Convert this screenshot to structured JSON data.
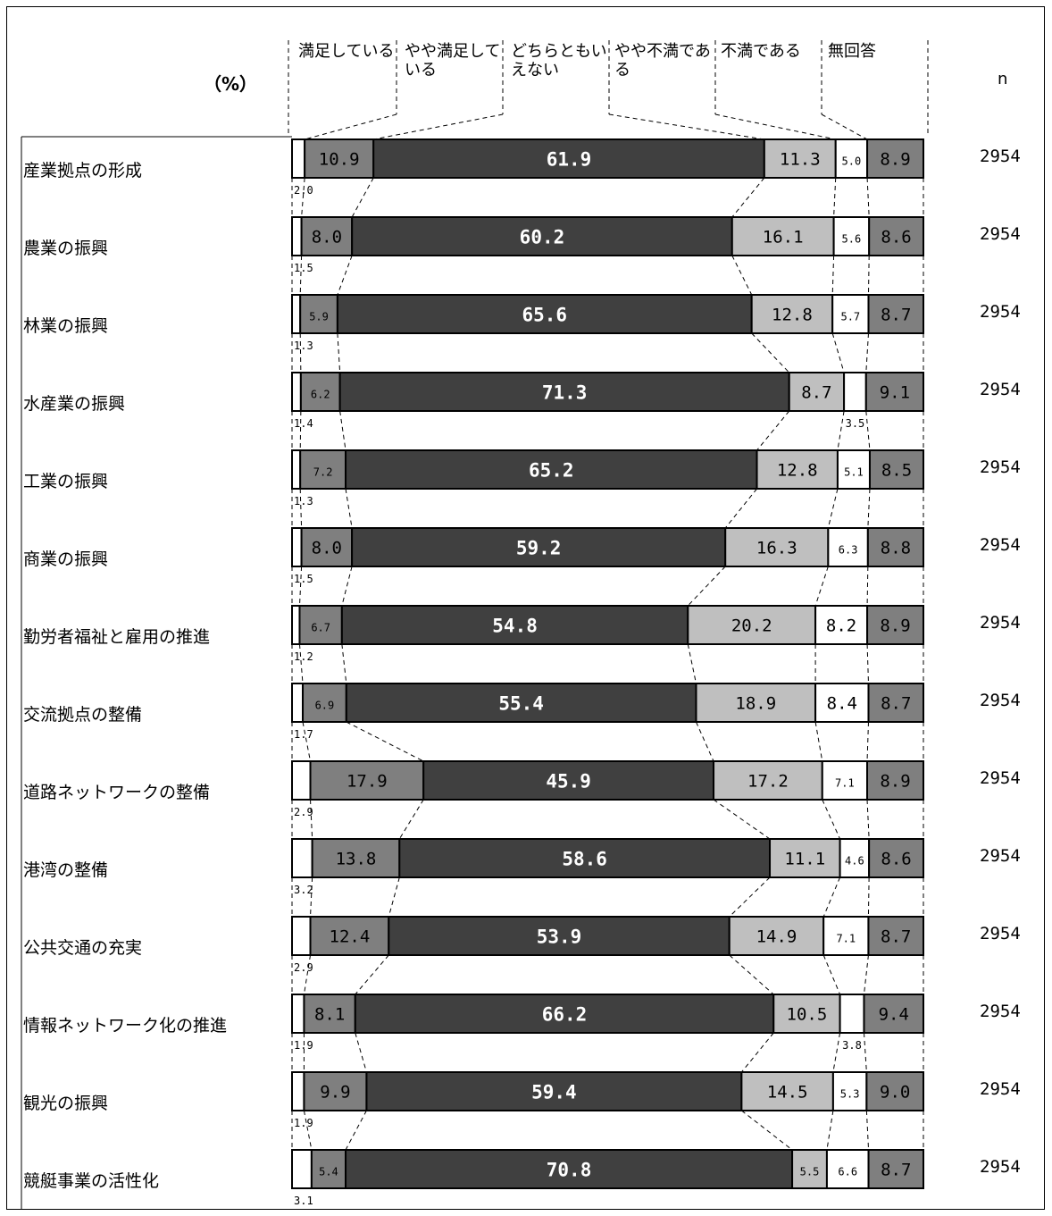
{
  "chart_data": {
    "type": "stacked_bar_horizontal",
    "unit_label": "（%）",
    "n_header": "n",
    "legend": [
      "満足している",
      "やや満足している",
      "どちらともいえない",
      "やや不満である",
      "不満である",
      "無回答"
    ],
    "colors": [
      "#ffffff",
      "#7f7f7f",
      "#404040",
      "#bfbfbf",
      "#ffffff",
      "#7f7f7f"
    ],
    "categories": [
      "産業拠点の形成",
      "農業の振興",
      "林業の振興",
      "水産業の振興",
      "工業の振興",
      "商業の振興",
      "勤労者福祉と雇用の推進",
      "交流拠点の整備",
      "道路ネットワークの整備",
      "港湾の整備",
      "公共交通の充実",
      "情報ネットワーク化の推進",
      "観光の振興",
      "競艇事業の活性化"
    ],
    "n": [
      "2954",
      "2954",
      "2954",
      "2954",
      "2954",
      "2954",
      "2954",
      "2954",
      "2954",
      "2954",
      "2954",
      "2954",
      "2954",
      "2954"
    ],
    "series": [
      {
        "name": "満足している",
        "values": [
          2.0,
          1.5,
          1.3,
          1.4,
          1.3,
          1.5,
          1.2,
          1.7,
          2.9,
          3.2,
          2.9,
          1.9,
          1.9,
          3.1
        ]
      },
      {
        "name": "やや満足している",
        "values": [
          10.9,
          8.0,
          5.9,
          6.2,
          7.2,
          8.0,
          6.7,
          6.9,
          17.9,
          13.8,
          12.4,
          8.1,
          9.9,
          5.4
        ]
      },
      {
        "name": "どちらともいえない",
        "values": [
          61.9,
          60.2,
          65.6,
          71.3,
          65.2,
          59.2,
          54.8,
          55.4,
          45.9,
          58.6,
          53.9,
          66.2,
          59.4,
          70.8
        ]
      },
      {
        "name": "やや不満である",
        "values": [
          11.3,
          16.1,
          12.8,
          8.7,
          12.8,
          16.3,
          20.2,
          18.9,
          17.2,
          11.1,
          14.9,
          10.5,
          14.5,
          5.5
        ]
      },
      {
        "name": "不満である",
        "values": [
          5.0,
          5.6,
          5.7,
          3.5,
          5.1,
          6.3,
          8.2,
          8.4,
          7.1,
          4.6,
          7.1,
          3.8,
          5.3,
          6.6
        ]
      },
      {
        "name": "無回答",
        "values": [
          8.9,
          8.6,
          8.7,
          9.1,
          8.5,
          8.8,
          8.9,
          8.7,
          8.9,
          8.6,
          8.7,
          9.4,
          9.0,
          8.7
        ]
      }
    ],
    "value_labels": [
      [
        "2.0",
        "10.9",
        "61.9",
        "11.3",
        "5.0",
        "8.9"
      ],
      [
        "1.5",
        "8.0",
        "60.2",
        "16.1",
        "5.6",
        "8.6"
      ],
      [
        "1.3",
        "5.9",
        "65.6",
        "12.8",
        "5.7",
        "8.7"
      ],
      [
        "1.4",
        "6.2",
        "71.3",
        "8.7",
        "3.5",
        "9.1"
      ],
      [
        "1.3",
        "7.2",
        "65.2",
        "12.8",
        "5.1",
        "8.5"
      ],
      [
        "1.5",
        "8.0",
        "59.2",
        "16.3",
        "6.3",
        "8.8"
      ],
      [
        "1.2",
        "6.7",
        "54.8",
        "20.2",
        "8.2",
        "8.9"
      ],
      [
        "1.7",
        "6.9",
        "55.4",
        "18.9",
        "8.4",
        "8.7"
      ],
      [
        "2.9",
        "17.9",
        "45.9",
        "17.2",
        "7.1",
        "8.9"
      ],
      [
        "3.2",
        "13.8",
        "58.6",
        "11.1",
        "4.6",
        "8.6"
      ],
      [
        "2.9",
        "12.4",
        "53.9",
        "14.9",
        "7.1",
        "8.7"
      ],
      [
        "1.9",
        "8.1",
        "66.2",
        "10.5",
        "3.8",
        "9.4"
      ],
      [
        "1.9",
        "9.9",
        "59.4",
        "14.5",
        "5.3",
        "9.0"
      ],
      [
        "3.1",
        "5.4",
        "70.8",
        "5.5",
        "6.6",
        "8.7"
      ]
    ]
  }
}
